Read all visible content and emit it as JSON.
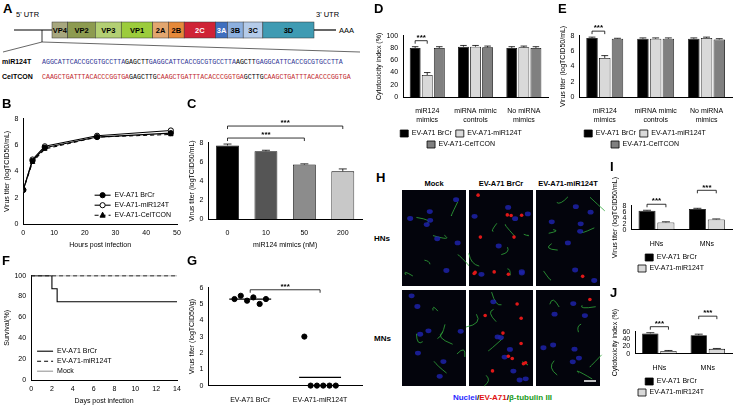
{
  "figure": {
    "diagram": {
      "label": "A",
      "utr5": "5' UTR",
      "utr3": "3' UTR",
      "poly_a": "AAA",
      "genes": [
        {
          "name": "VP4",
          "color": "#a7a77e"
        },
        {
          "name": "VP2",
          "color": "#8d9b50"
        },
        {
          "name": "VP3",
          "color": "#b3cf73"
        },
        {
          "name": "VP1",
          "color": "#9ccc3c"
        },
        {
          "name": "2A",
          "color": "#e2a66f"
        },
        {
          "name": "2B",
          "color": "#e5893a"
        },
        {
          "name": "2C",
          "color": "#cf2336"
        },
        {
          "name": "3A",
          "color": "#3f6fbf"
        },
        {
          "name": "3B",
          "color": "#8db0df"
        },
        {
          "name": "3C",
          "color": "#b4cbe9"
        },
        {
          "name": "3D",
          "color": "#3f9bb3"
        }
      ],
      "inserts": [
        {
          "name": "miR124T",
          "color": "#2e3192",
          "segments": [
            {
              "text": "AGGCATTCACCGCGTGCCTTA",
              "target": true
            },
            {
              "text": "GAGCTT",
              "target": false
            },
            {
              "text": "GAGGCATTCACCGCGTGCCTTA",
              "target": true
            },
            {
              "text": "AGCTT",
              "target": false
            },
            {
              "text": "GAGGCATTCACCGCGTGCCTTA",
              "target": true
            }
          ]
        },
        {
          "name": "CelTCON",
          "color": "#c1272d",
          "segments": [
            {
              "text": "CAAGCTGATTTACACCCGGTGA",
              "target": true
            },
            {
              "text": "GAGCTTG",
              "target": false
            },
            {
              "text": "CAAGCTGATTTACACCCGGTGA",
              "target": true
            },
            {
              "text": "GCTTG",
              "target": false
            },
            {
              "text": "CAAGCTGATTTACACCCGGTGA",
              "target": true
            }
          ]
        }
      ]
    },
    "micrographs": {
      "label": "H",
      "columns": [
        "Mock",
        "EV-A71 BrCr",
        "EV-A71-miR124T"
      ],
      "rows": [
        "HNs",
        "MNs"
      ],
      "stain": [
        {
          "text": "Nuclei",
          "color": "#2a2aff"
        },
        {
          "text": "/",
          "color": "#000000"
        },
        {
          "text": "EV-A71",
          "color": "#e01010"
        },
        {
          "text": "/",
          "color": "#000000"
        },
        {
          "text": "β-tubulin III",
          "color": "#1a9a1a"
        }
      ]
    }
  },
  "chart_data": [
    {
      "type": "line",
      "title": "B",
      "xlabel": "Hours post infection",
      "ylabel": "Virus titer (logTCID50/mL)",
      "x": [
        0,
        3,
        7,
        24,
        48
      ],
      "xlim": [
        0,
        50
      ],
      "xticks": [
        0,
        10,
        20,
        30,
        40,
        50
      ],
      "ylim": [
        0,
        8
      ],
      "yticks": [
        0,
        2,
        4,
        6,
        8
      ],
      "grid": false,
      "legend": "lower right",
      "series": [
        {
          "name": "EV-A71 BrCr",
          "color": "#000000",
          "marker": "circle",
          "line_style": "solid",
          "values": [
            2.6,
            4.8,
            5.8,
            6.6,
            6.9
          ]
        },
        {
          "name": "EV-A71-miR124T",
          "color": "#000000",
          "marker": "open_circle",
          "line_style": "solid",
          "values": [
            2.6,
            4.9,
            5.9,
            6.7,
            7.1
          ]
        },
        {
          "name": "EV-A71-CelTCON",
          "color": "#000000",
          "marker": "triangle",
          "line_style": "dashed",
          "values": [
            2.6,
            4.7,
            5.7,
            6.6,
            6.8
          ]
        }
      ]
    },
    {
      "type": "bar",
      "title": "C",
      "xlabel": "miR124 mimics (nM)",
      "ylabel": "Virus titer (logTCID50/mL)",
      "categories": [
        "0",
        "10",
        "50",
        "200"
      ],
      "values": [
        7.7,
        7.1,
        5.7,
        5.0
      ],
      "errors": [
        0.15,
        0.1,
        0.08,
        0.25
      ],
      "colors": [
        "#000000",
        "#555555",
        "#8c8c8c",
        "#c8c8c8"
      ],
      "ylim": [
        0,
        8
      ],
      "yticks": [
        0,
        2,
        4,
        6,
        8
      ],
      "grid": false,
      "significance": [
        {
          "text": "***",
          "between": [
            "0",
            "50"
          ]
        },
        {
          "text": "***",
          "between": [
            "0",
            "200"
          ]
        }
      ]
    },
    {
      "type": "bar",
      "title": "D",
      "ylabel": "Cytotoxicity index (%)",
      "categories": [
        "miR124 mimics",
        "miRNA mimic controls",
        "No miRNA mimics"
      ],
      "ylim": [
        0,
        100
      ],
      "yticks": [
        0,
        20,
        40,
        60,
        80,
        100
      ],
      "grid": false,
      "legend": "bottom",
      "series": [
        {
          "name": "EV-A71 BrCr",
          "color": "#000000",
          "values": [
            80,
            82,
            80
          ],
          "errors": [
            2,
            2,
            2
          ]
        },
        {
          "name": "EV-A71-miR124T",
          "color": "#d9d9d9",
          "values": [
            36,
            82,
            81
          ],
          "errors": [
            4,
            2,
            2
          ]
        },
        {
          "name": "EV-A71-CelTCON",
          "color": "#808080",
          "values": [
            80,
            81,
            80
          ],
          "errors": [
            2,
            2,
            2
          ]
        }
      ],
      "significance": [
        {
          "text": "***",
          "category": "miR124 mimics",
          "between": [
            "EV-A71 BrCr",
            "EV-A71-miR124T"
          ]
        }
      ]
    },
    {
      "type": "bar",
      "title": "E",
      "ylabel": "Virus titer (logTCID50/mL)",
      "categories": [
        "miR124 mimics",
        "miRNA mimic controls",
        "No miRNA mimics"
      ],
      "ylim": [
        0,
        8
      ],
      "yticks": [
        0,
        2,
        4,
        6,
        8
      ],
      "grid": false,
      "legend": "bottom",
      "series": [
        {
          "name": "EV-A71 BrCr",
          "color": "#000000",
          "values": [
            7.7,
            7.6,
            7.6
          ],
          "errors": [
            0.1,
            0.1,
            0.1
          ]
        },
        {
          "name": "EV-A71-miR124T",
          "color": "#d9d9d9",
          "values": [
            5.1,
            7.6,
            7.7
          ],
          "errors": [
            0.3,
            0.1,
            0.1
          ]
        },
        {
          "name": "EV-A71-CelTCON",
          "color": "#808080",
          "values": [
            7.6,
            7.6,
            7.5
          ],
          "errors": [
            0.05,
            0.1,
            0.1
          ]
        }
      ],
      "significance": [
        {
          "text": "***",
          "category": "miR124 mimics",
          "between": [
            "EV-A71 BrCr",
            "EV-A71-miR124T"
          ]
        }
      ]
    },
    {
      "type": "step",
      "title": "F",
      "xlabel": "Days post infection",
      "ylabel": "Survival(%)",
      "xlim": [
        0,
        14
      ],
      "xticks": [
        0,
        2,
        4,
        6,
        8,
        10,
        12,
        14
      ],
      "ylim": [
        0,
        100
      ],
      "yticks": [
        0,
        20,
        40,
        60,
        80,
        100
      ],
      "grid": false,
      "legend": "lower left",
      "series": [
        {
          "name": "EV-A71 BrCr",
          "color": "#000000",
          "marker": "none",
          "line_style": "solid",
          "x": [
            0,
            2,
            2.5,
            14
          ],
          "values": [
            100,
            87.5,
            75,
            75
          ]
        },
        {
          "name": "EV-A71-miR124T",
          "color": "#000000",
          "marker": "none",
          "line_style": "dashed",
          "x": [
            0,
            14
          ],
          "values": [
            100,
            100
          ]
        },
        {
          "name": "Mock",
          "color": "#999999",
          "marker": "none",
          "line_style": "solid",
          "x": [
            0,
            14
          ],
          "values": [
            100,
            100
          ]
        }
      ]
    },
    {
      "type": "dot",
      "title": "G",
      "ylabel": "Virus titer (logTCID50/g)",
      "categories": [
        "EV-A71 BrCr",
        "EV-A71-miR124T"
      ],
      "points": [
        [
          5.3,
          5.5,
          5.2,
          5.4,
          5.0,
          5.3
        ],
        [
          3.0,
          0,
          0,
          0,
          0,
          0
        ]
      ],
      "means": [
        5.3,
        0.5
      ],
      "color": "#000000",
      "ylim": [
        0,
        6
      ],
      "yticks": [
        0,
        1,
        2,
        3,
        4,
        5,
        6
      ],
      "grid": false,
      "significance": [
        {
          "text": "***",
          "between": [
            "EV-A71 BrCr",
            "EV-A71-miR124T"
          ]
        }
      ]
    },
    {
      "type": "bar",
      "title": "I",
      "ylabel": "Virus titer (logTCID50/mL)",
      "categories": [
        "HNs",
        "MNs"
      ],
      "ylim": [
        0,
        8
      ],
      "yticks": [
        0,
        2,
        4,
        6,
        8
      ],
      "grid": false,
      "legend": "bottom",
      "series": [
        {
          "name": "EV-A71 BrCr",
          "color": "#000000",
          "values": [
            6.3,
            6.9
          ],
          "errors": [
            0.15,
            0.2
          ]
        },
        {
          "name": "EV-A71-miR124T",
          "color": "#d9d9d9",
          "values": [
            2.4,
            3.4
          ],
          "errors": [
            0.2,
            0.15
          ]
        }
      ],
      "significance": [
        {
          "text": "***",
          "category": "HNs",
          "between": [
            "EV-A71 BrCr",
            "EV-A71-miR124T"
          ]
        },
        {
          "text": "***",
          "category": "MNs",
          "between": [
            "EV-A71 BrCr",
            "EV-A71-miR124T"
          ]
        }
      ]
    },
    {
      "type": "bar",
      "title": "J",
      "ylabel": "Cytotoxicity index (%)",
      "categories": [
        "HNs",
        "MNs"
      ],
      "ylim": [
        0,
        60
      ],
      "yticks": [
        0,
        20,
        40,
        60
      ],
      "grid": false,
      "legend": "bottom",
      "series": [
        {
          "name": "EV-A71 BrCr",
          "color": "#000000",
          "values": [
            55,
            50
          ],
          "errors": [
            2,
            3
          ]
        },
        {
          "name": "EV-A71-miR124T",
          "color": "#d9d9d9",
          "values": [
            7,
            13
          ],
          "errors": [
            1.5,
            1
          ]
        }
      ],
      "significance": [
        {
          "text": "***",
          "category": "HNs",
          "between": [
            "EV-A71 BrCr",
            "EV-A71-miR124T"
          ]
        },
        {
          "text": "***",
          "category": "MNs",
          "between": [
            "EV-A71 BrCr",
            "EV-A71-miR124T"
          ]
        }
      ]
    }
  ]
}
